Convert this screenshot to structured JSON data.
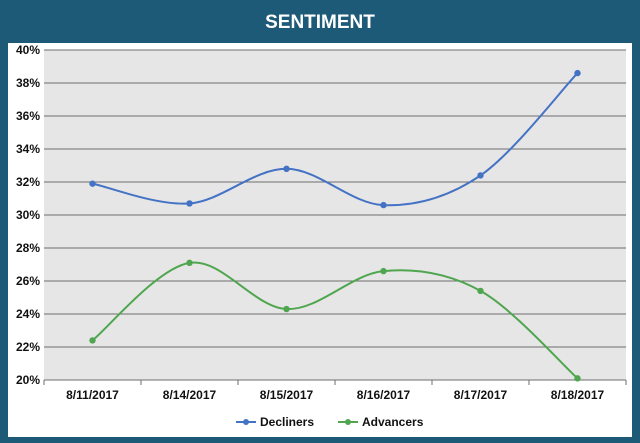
{
  "chart_data": {
    "type": "line",
    "title": "SENTIMENT",
    "categories": [
      "8/11/2017",
      "8/14/2017",
      "8/15/2017",
      "8/16/2017",
      "8/17/2017",
      "8/18/2017"
    ],
    "series": [
      {
        "name": "Decliners",
        "color": "#4472c4",
        "values": [
          31.9,
          30.7,
          32.8,
          30.6,
          32.4,
          38.6
        ]
      },
      {
        "name": "Advancers",
        "color": "#4fa64f",
        "values": [
          22.4,
          27.1,
          24.3,
          26.6,
          25.4,
          20.1
        ]
      }
    ],
    "ylim": [
      20,
      40
    ],
    "y_ticks": [
      20,
      22,
      24,
      26,
      28,
      30,
      32,
      34,
      36,
      38,
      40
    ],
    "y_tick_labels": [
      "20%",
      "22%",
      "24%",
      "26%",
      "28%",
      "30%",
      "32%",
      "34%",
      "36%",
      "38%",
      "40%"
    ],
    "grid": true,
    "smooth": true,
    "legend_position": "bottom",
    "colors": {
      "background": "#1d5a78",
      "plot_area": "#e6e6e6",
      "gridline": "#6e6e6e"
    }
  }
}
